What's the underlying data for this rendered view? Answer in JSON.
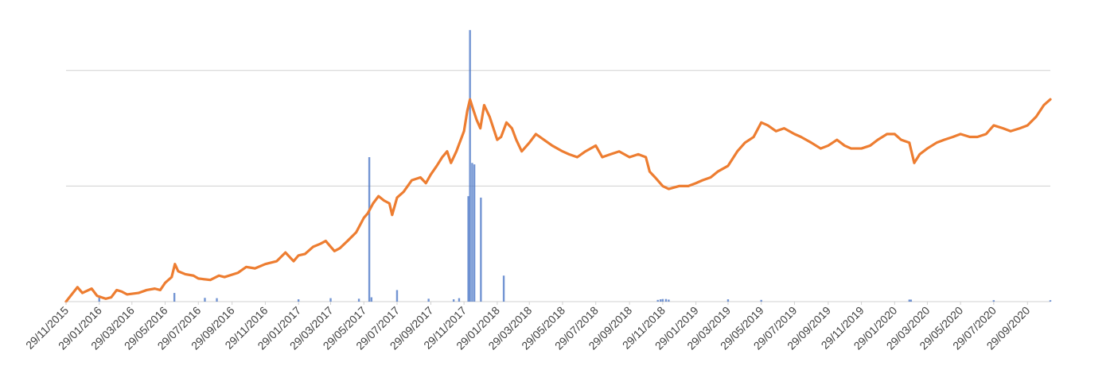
{
  "chart_data": {
    "type": "bar+line",
    "title": "",
    "xlabel": "",
    "ylabel": "",
    "grid": true,
    "legend": "none",
    "x_range": [
      "2015-11-29",
      "2020-11-10"
    ],
    "y_range": [
      0,
      100
    ],
    "x_tick_labels": [
      "29/11/2015",
      "29/01/2016",
      "29/03/2016",
      "29/05/2016",
      "29/07/2016",
      "29/09/2016",
      "29/11/2016",
      "29/01/2017",
      "29/03/2017",
      "29/05/2017",
      "29/07/2017",
      "29/09/2017",
      "29/11/2017",
      "29/01/2018",
      "29/03/2018",
      "29/05/2018",
      "29/07/2018",
      "29/09/2018",
      "29/11/2018",
      "29/01/2019",
      "29/03/2019",
      "29/05/2019",
      "29/07/2019",
      "29/09/2019",
      "29/11/2019",
      "29/01/2020",
      "29/03/2020",
      "29/05/2020",
      "29/07/2020",
      "29/09/2020"
    ],
    "gridlines_y": [
      40,
      80
    ],
    "series": [
      {
        "type": "line",
        "color": "#ED7D31",
        "points": [
          [
            "2015-11-29",
            0
          ],
          [
            "2015-12-20",
            5
          ],
          [
            "2015-12-29",
            3
          ],
          [
            "2016-01-15",
            4.5
          ],
          [
            "2016-01-25",
            2
          ],
          [
            "2016-02-10",
            1
          ],
          [
            "2016-02-20",
            1.5
          ],
          [
            "2016-03-01",
            4
          ],
          [
            "2016-03-10",
            3.5
          ],
          [
            "2016-03-20",
            2.5
          ],
          [
            "2016-04-10",
            3
          ],
          [
            "2016-04-25",
            4
          ],
          [
            "2016-05-10",
            4.5
          ],
          [
            "2016-05-20",
            4
          ],
          [
            "2016-05-29",
            6.5
          ],
          [
            "2016-06-10",
            8.5
          ],
          [
            "2016-06-16",
            13
          ],
          [
            "2016-06-22",
            10.5
          ],
          [
            "2016-07-05",
            9.5
          ],
          [
            "2016-07-20",
            9
          ],
          [
            "2016-07-29",
            8
          ],
          [
            "2016-08-20",
            7.5
          ],
          [
            "2016-09-05",
            9
          ],
          [
            "2016-09-15",
            8.5
          ],
          [
            "2016-10-10",
            10
          ],
          [
            "2016-10-25",
            12
          ],
          [
            "2016-11-10",
            11.5
          ],
          [
            "2016-11-29",
            13
          ],
          [
            "2016-12-20",
            14
          ],
          [
            "2017-01-05",
            17
          ],
          [
            "2017-01-20",
            14
          ],
          [
            "2017-01-29",
            16
          ],
          [
            "2017-02-10",
            16.5
          ],
          [
            "2017-02-25",
            19
          ],
          [
            "2017-03-10",
            20
          ],
          [
            "2017-03-20",
            21
          ],
          [
            "2017-03-29",
            19
          ],
          [
            "2017-04-05",
            17.5
          ],
          [
            "2017-04-15",
            18.5
          ],
          [
            "2017-04-29",
            21
          ],
          [
            "2017-05-15",
            24
          ],
          [
            "2017-05-29",
            29
          ],
          [
            "2017-06-05",
            30.5
          ],
          [
            "2017-06-15",
            34
          ],
          [
            "2017-06-25",
            36.5
          ],
          [
            "2017-07-05",
            35
          ],
          [
            "2017-07-15",
            34
          ],
          [
            "2017-07-20",
            30
          ],
          [
            "2017-07-29",
            36
          ],
          [
            "2017-08-10",
            38
          ],
          [
            "2017-08-25",
            42
          ],
          [
            "2017-09-10",
            43
          ],
          [
            "2017-09-20",
            41
          ],
          [
            "2017-09-29",
            44
          ],
          [
            "2017-10-10",
            47
          ],
          [
            "2017-10-20",
            50
          ],
          [
            "2017-10-29",
            52
          ],
          [
            "2017-11-05",
            48
          ],
          [
            "2017-11-15",
            52
          ],
          [
            "2017-11-29",
            59
          ],
          [
            "2017-12-05",
            66
          ],
          [
            "2017-12-10",
            70
          ],
          [
            "2017-12-15",
            67
          ],
          [
            "2017-12-22",
            63
          ],
          [
            "2017-12-29",
            60
          ],
          [
            "2018-01-05",
            68
          ],
          [
            "2018-01-15",
            64
          ],
          [
            "2018-01-29",
            56
          ],
          [
            "2018-02-05",
            57
          ],
          [
            "2018-02-15",
            62
          ],
          [
            "2018-02-25",
            60
          ],
          [
            "2018-03-05",
            56
          ],
          [
            "2018-03-15",
            52
          ],
          [
            "2018-03-29",
            55
          ],
          [
            "2018-04-10",
            58
          ],
          [
            "2018-04-25",
            56
          ],
          [
            "2018-05-10",
            54
          ],
          [
            "2018-05-29",
            52
          ],
          [
            "2018-06-10",
            51
          ],
          [
            "2018-06-25",
            50
          ],
          [
            "2018-07-10",
            52
          ],
          [
            "2018-07-29",
            54
          ],
          [
            "2018-08-10",
            50
          ],
          [
            "2018-08-25",
            51
          ],
          [
            "2018-09-10",
            52
          ],
          [
            "2018-09-29",
            50
          ],
          [
            "2018-10-15",
            51
          ],
          [
            "2018-10-29",
            50
          ],
          [
            "2018-11-05",
            45
          ],
          [
            "2018-11-15",
            43
          ],
          [
            "2018-11-29",
            40
          ],
          [
            "2018-12-10",
            39
          ],
          [
            "2018-12-29",
            40
          ],
          [
            "2019-01-15",
            40
          ],
          [
            "2019-01-29",
            41
          ],
          [
            "2019-02-10",
            42
          ],
          [
            "2019-02-25",
            43
          ],
          [
            "2019-03-10",
            45
          ],
          [
            "2019-03-29",
            47
          ],
          [
            "2019-04-15",
            52
          ],
          [
            "2019-04-29",
            55
          ],
          [
            "2019-05-15",
            57
          ],
          [
            "2019-05-29",
            62
          ],
          [
            "2019-06-10",
            61
          ],
          [
            "2019-06-25",
            59
          ],
          [
            "2019-07-10",
            60
          ],
          [
            "2019-07-29",
            58
          ],
          [
            "2019-08-10",
            57
          ],
          [
            "2019-08-29",
            55
          ],
          [
            "2019-09-15",
            53
          ],
          [
            "2019-09-29",
            54
          ],
          [
            "2019-10-15",
            56
          ],
          [
            "2019-10-29",
            54
          ],
          [
            "2019-11-10",
            53
          ],
          [
            "2019-11-29",
            53
          ],
          [
            "2019-12-15",
            54
          ],
          [
            "2019-12-29",
            56
          ],
          [
            "2020-01-15",
            58
          ],
          [
            "2020-01-29",
            58
          ],
          [
            "2020-02-10",
            56
          ],
          [
            "2020-02-25",
            55
          ],
          [
            "2020-03-05",
            48
          ],
          [
            "2020-03-15",
            51
          ],
          [
            "2020-03-29",
            53
          ],
          [
            "2020-04-15",
            55
          ],
          [
            "2020-04-29",
            56
          ],
          [
            "2020-05-15",
            57
          ],
          [
            "2020-05-29",
            58
          ],
          [
            "2020-06-15",
            57
          ],
          [
            "2020-06-29",
            57
          ],
          [
            "2020-07-15",
            58
          ],
          [
            "2020-07-29",
            61
          ],
          [
            "2020-08-15",
            60
          ],
          [
            "2020-08-29",
            59
          ],
          [
            "2020-09-15",
            60
          ],
          [
            "2020-09-29",
            61
          ],
          [
            "2020-10-15",
            64
          ],
          [
            "2020-10-29",
            68
          ],
          [
            "2020-11-10",
            70
          ]
        ]
      },
      {
        "type": "bar",
        "color": "#4472C4",
        "points": [
          [
            "2016-01-29",
            1.5
          ],
          [
            "2016-06-15",
            3
          ],
          [
            "2016-08-10",
            1.3
          ],
          [
            "2016-09-01",
            1.2
          ],
          [
            "2017-01-29",
            0.8
          ],
          [
            "2017-03-29",
            1.2
          ],
          [
            "2017-05-20",
            1
          ],
          [
            "2017-06-08",
            50
          ],
          [
            "2017-06-12",
            1.5
          ],
          [
            "2017-07-29",
            4
          ],
          [
            "2017-09-25",
            1
          ],
          [
            "2017-11-10",
            0.8
          ],
          [
            "2017-11-20",
            1.2
          ],
          [
            "2017-12-07",
            36.5
          ],
          [
            "2017-12-10",
            94
          ],
          [
            "2017-12-14",
            48
          ],
          [
            "2017-12-18",
            47.5
          ],
          [
            "2017-12-30",
            36
          ],
          [
            "2018-02-10",
            9
          ],
          [
            "2018-11-20",
            0.6
          ],
          [
            "2018-11-25",
            0.8
          ],
          [
            "2018-11-29",
            0.9
          ],
          [
            "2018-12-05",
            0.9
          ],
          [
            "2018-12-10",
            0.7
          ],
          [
            "2019-03-29",
            0.8
          ],
          [
            "2019-05-29",
            0.6
          ],
          [
            "2020-02-25",
            0.7
          ],
          [
            "2020-02-28",
            0.7
          ],
          [
            "2020-07-29",
            0.5
          ],
          [
            "2020-11-10",
            0.5
          ]
        ]
      }
    ]
  }
}
